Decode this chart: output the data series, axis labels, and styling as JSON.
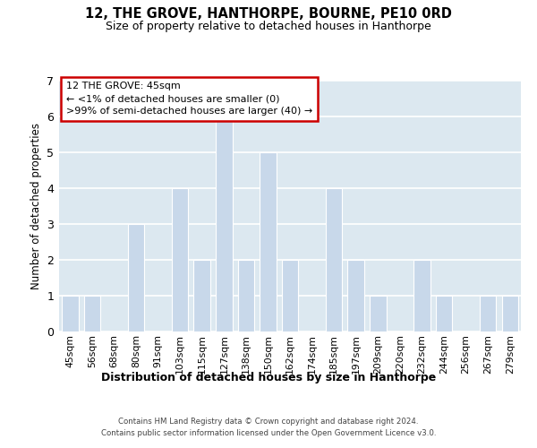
{
  "title": "12, THE GROVE, HANTHORPE, BOURNE, PE10 0RD",
  "subtitle": "Size of property relative to detached houses in Hanthorpe",
  "xlabel": "Distribution of detached houses by size in Hanthorpe",
  "ylabel": "Number of detached properties",
  "bar_labels": [
    "45sqm",
    "56sqm",
    "68sqm",
    "80sqm",
    "91sqm",
    "103sqm",
    "115sqm",
    "127sqm",
    "138sqm",
    "150sqm",
    "162sqm",
    "174sqm",
    "185sqm",
    "197sqm",
    "209sqm",
    "220sqm",
    "232sqm",
    "244sqm",
    "256sqm",
    "267sqm",
    "279sqm"
  ],
  "bar_values": [
    1,
    1,
    0,
    3,
    0,
    4,
    2,
    6,
    2,
    5,
    2,
    0,
    4,
    2,
    1,
    0,
    2,
    1,
    0,
    1,
    1
  ],
  "bar_color": "#c8d8ea",
  "ylim": [
    0,
    7
  ],
  "yticks": [
    0,
    1,
    2,
    3,
    4,
    5,
    6,
    7
  ],
  "grid_color": "#ffffff",
  "bg_color": "#dce8f0",
  "annotation_title": "12 THE GROVE: 45sqm",
  "annotation_line1": "← <1% of detached houses are smaller (0)",
  "annotation_line2": ">99% of semi-detached houses are larger (40) →",
  "annotation_box_color": "#ffffff",
  "annotation_border_color": "#cc0000",
  "footer_line1": "Contains HM Land Registry data © Crown copyright and database right 2024.",
  "footer_line2": "Contains public sector information licensed under the Open Government Licence v3.0."
}
